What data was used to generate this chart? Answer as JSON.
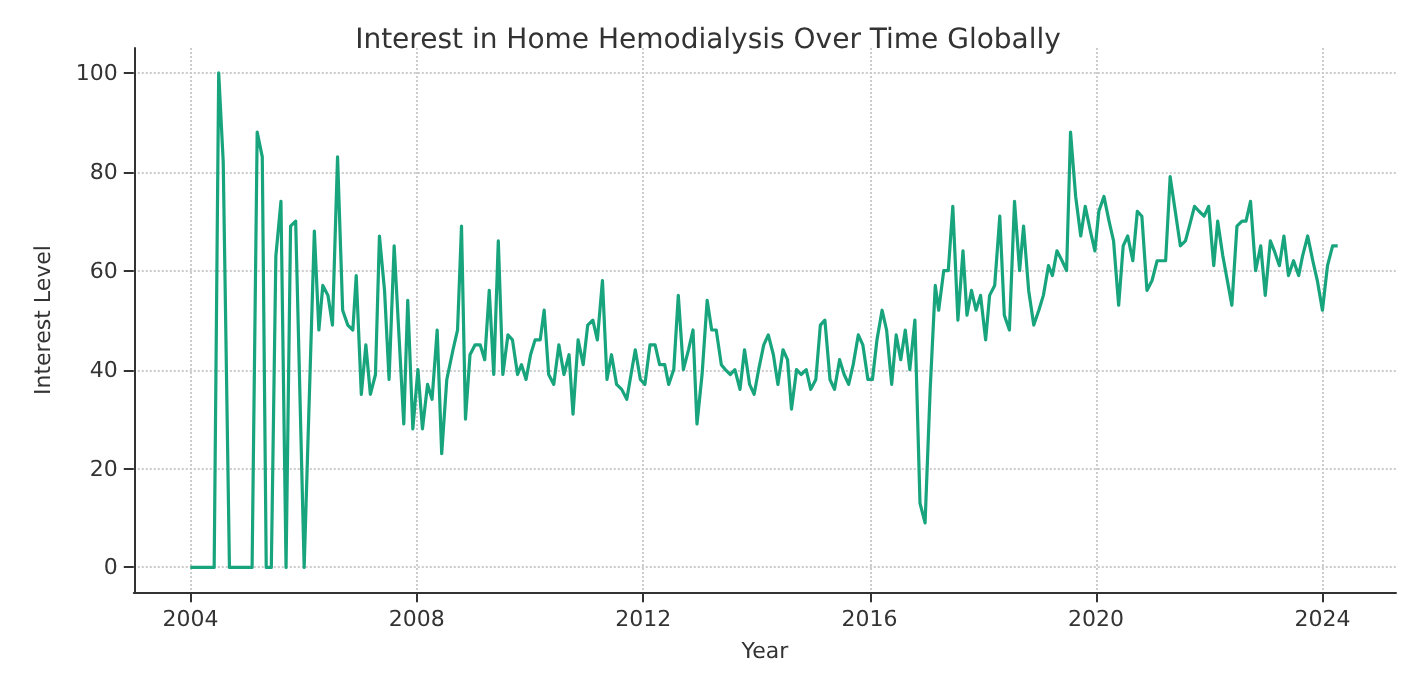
{
  "chart_data": {
    "type": "line",
    "title": "Interest in Home Hemodialysis Over Time Globally",
    "xlabel": "Year",
    "ylabel": "Interest Level",
    "x": [
      2004.0,
      2004.42,
      2004.5,
      2004.58,
      2004.69,
      2005.09,
      2005.18,
      2005.27,
      2005.34,
      2005.43,
      2005.51,
      2005.6,
      2005.69,
      2005.77,
      2005.86,
      2006.01,
      2006.19,
      2006.27,
      2006.34,
      2006.43,
      2006.51,
      2006.6,
      2006.69,
      2006.78,
      2006.87,
      2006.93,
      2007.02,
      2007.1,
      2007.18,
      2007.27,
      2007.34,
      2007.43,
      2007.51,
      2007.6,
      2007.68,
      2007.77,
      2007.84,
      2007.93,
      2008.02,
      2008.1,
      2008.19,
      2008.27,
      2008.36,
      2008.44,
      2008.53,
      2008.64,
      2008.72,
      2008.79,
      2008.86,
      2008.94,
      2009.03,
      2009.12,
      2009.2,
      2009.28,
      2009.36,
      2009.44,
      2009.52,
      2009.61,
      2009.69,
      2009.78,
      2009.85,
      2009.93,
      2010.01,
      2010.09,
      2010.18,
      2010.25,
      2010.33,
      2010.42,
      2010.51,
      2010.6,
      2010.69,
      2010.76,
      2010.85,
      2010.94,
      2011.02,
      2011.11,
      2011.19,
      2011.28,
      2011.36,
      2011.44,
      2011.53,
      2011.62,
      2011.71,
      2011.86,
      2011.95,
      2012.03,
      2012.12,
      2012.21,
      2012.29,
      2012.38,
      2012.45,
      2012.54,
      2012.62,
      2012.71,
      2012.8,
      2012.88,
      2012.95,
      2013.04,
      2013.13,
      2013.21,
      2013.29,
      2013.38,
      2013.45,
      2013.54,
      2013.62,
      2013.71,
      2013.79,
      2013.88,
      2013.96,
      2014.04,
      2014.13,
      2014.21,
      2014.3,
      2014.38,
      2014.47,
      2014.55,
      2014.62,
      2014.71,
      2014.79,
      2014.88,
      2014.96,
      2015.05,
      2015.13,
      2015.21,
      2015.3,
      2015.38,
      2015.47,
      2015.55,
      2015.63,
      2015.71,
      2015.8,
      2015.88,
      2015.97,
      2016.05,
      2016.13,
      2016.22,
      2016.3,
      2016.39,
      2016.47,
      2016.55,
      2016.63,
      2016.71,
      2016.8,
      2016.89,
      2016.98,
      2017.07,
      2017.16,
      2017.22,
      2017.31,
      2017.39,
      2017.47,
      2017.56,
      2017.65,
      2017.72,
      2017.8,
      2017.88,
      2017.96,
      2018.05,
      2018.12,
      2018.21,
      2018.3,
      2018.38,
      2018.47,
      2018.56,
      2018.65,
      2018.72,
      2018.81,
      2018.9,
      2018.99,
      2019.07,
      2019.16,
      2019.23,
      2019.31,
      2019.4,
      2019.48,
      2019.55,
      2019.64,
      2019.73,
      2019.81,
      2019.9,
      2019.98,
      2020.05,
      2020.14,
      2020.23,
      2020.31,
      2020.4,
      2020.48,
      2020.56,
      2020.65,
      2020.73,
      2020.81,
      2020.9,
      2020.99,
      2021.08,
      2021.15,
      2021.23,
      2021.31,
      2021.4,
      2021.49,
      2021.58,
      2021.65,
      2021.74,
      2021.82,
      2021.91,
      2021.99,
      2022.08,
      2022.15,
      2022.24,
      2022.32,
      2022.4,
      2022.49,
      2022.58,
      2022.65,
      2022.73,
      2022.82,
      2022.91,
      2022.99,
      2023.08,
      2023.15,
      2023.24,
      2023.32,
      2023.4,
      2023.49,
      2023.58,
      2023.65,
      2023.74,
      2023.83,
      2023.91,
      2024.0,
      2024.09,
      2024.18,
      2024.27
    ],
    "series": [
      {
        "color": "#18a47c",
        "values": [
          0,
          0,
          100,
          82,
          0,
          0,
          88,
          83,
          0,
          0,
          63,
          74,
          0,
          69,
          70,
          0,
          68,
          48,
          57,
          55,
          49,
          83,
          52,
          49,
          48,
          59,
          35,
          45,
          35,
          39,
          67,
          56,
          38,
          65,
          48,
          29,
          54,
          28,
          40,
          28,
          37,
          34,
          48,
          23,
          38,
          44,
          48,
          69,
          30,
          43,
          45,
          45,
          42,
          56,
          39,
          66,
          39,
          47,
          46,
          39,
          41,
          38,
          43,
          46,
          46,
          52,
          39,
          37,
          45,
          39,
          43,
          31,
          46,
          41,
          49,
          50,
          46,
          58,
          38,
          43,
          37,
          36,
          34,
          44,
          38,
          37,
          45,
          45,
          41,
          41,
          37,
          40,
          55,
          40,
          44,
          48,
          29,
          39,
          54,
          48,
          48,
          41,
          40,
          39,
          40,
          36,
          44,
          37,
          35,
          40,
          45,
          47,
          43,
          37,
          44,
          42,
          32,
          40,
          39,
          40,
          36,
          38,
          49,
          50,
          38,
          36,
          42,
          39,
          37,
          41,
          47,
          45,
          38,
          38,
          46,
          52,
          48,
          37,
          47,
          42,
          48,
          40,
          50,
          13,
          9,
          36,
          57,
          52,
          60,
          60,
          73,
          50,
          64,
          51,
          56,
          52,
          55,
          46,
          55,
          57,
          71,
          51,
          48,
          74,
          60,
          69,
          56,
          49,
          52,
          55,
          61,
          59,
          64,
          62,
          60,
          88,
          75,
          67,
          73,
          68,
          64,
          72,
          75,
          70,
          66,
          53,
          65,
          67,
          62,
          72,
          71,
          56,
          58,
          62,
          62,
          62,
          79,
          72,
          65,
          66,
          69,
          73,
          72,
          71,
          73,
          61,
          70,
          63,
          58,
          53,
          69,
          70,
          70,
          74,
          60,
          65,
          55,
          66,
          64,
          61,
          67,
          59,
          62,
          59,
          63,
          67,
          62,
          58,
          52,
          61,
          65,
          65
        ]
      }
    ],
    "xlim": [
      2003.0,
      2025.3
    ],
    "xticks": [
      2004,
      2008,
      2012,
      2016,
      2020,
      2024
    ],
    "ylim": [
      -5,
      105
    ],
    "yticks": [
      0,
      20,
      40,
      60,
      80,
      100
    ],
    "grid": true,
    "line_style": "solid",
    "marker": "none"
  }
}
